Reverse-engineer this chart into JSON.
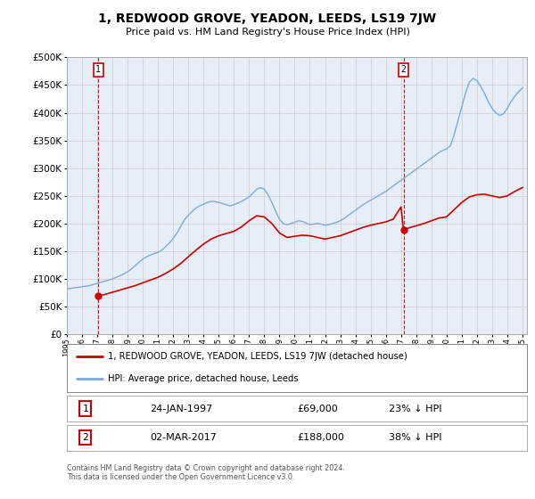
{
  "title": "1, REDWOOD GROVE, YEADON, LEEDS, LS19 7JW",
  "subtitle": "Price paid vs. HM Land Registry's House Price Index (HPI)",
  "ylim": [
    0,
    500000
  ],
  "xlim_start": 1995.0,
  "xlim_end": 2025.3,
  "purchase1_x": 1997.07,
  "purchase1_y": 69000,
  "purchase1_label": "24-JAN-1997",
  "purchase1_price": "£69,000",
  "purchase1_hpi": "23% ↓ HPI",
  "purchase2_x": 2017.17,
  "purchase2_y": 188000,
  "purchase2_label": "02-MAR-2017",
  "purchase2_price": "£188,000",
  "purchase2_hpi": "38% ↓ HPI",
  "red_line_color": "#cc0000",
  "blue_line_color": "#7aabdb",
  "vline_color": "#cc0000",
  "grid_color": "#cccccc",
  "bg_color": "#e8eef7",
  "legend_label_red": "1, REDWOOD GROVE, YEADON, LEEDS, LS19 7JW (detached house)",
  "legend_label_blue": "HPI: Average price, detached house, Leeds",
  "footer": "Contains HM Land Registry data © Crown copyright and database right 2024.\nThis data is licensed under the Open Government Licence v3.0.",
  "hpi_years": [
    1995.0,
    1995.25,
    1995.5,
    1995.75,
    1996.0,
    1996.25,
    1996.5,
    1996.75,
    1997.0,
    1997.25,
    1997.5,
    1997.75,
    1998.0,
    1998.25,
    1998.5,
    1998.75,
    1999.0,
    1999.25,
    1999.5,
    1999.75,
    2000.0,
    2000.25,
    2000.5,
    2000.75,
    2001.0,
    2001.25,
    2001.5,
    2001.75,
    2002.0,
    2002.25,
    2002.5,
    2002.75,
    2003.0,
    2003.25,
    2003.5,
    2003.75,
    2004.0,
    2004.25,
    2004.5,
    2004.75,
    2005.0,
    2005.25,
    2005.5,
    2005.75,
    2006.0,
    2006.25,
    2006.5,
    2006.75,
    2007.0,
    2007.25,
    2007.5,
    2007.75,
    2008.0,
    2008.25,
    2008.5,
    2008.75,
    2009.0,
    2009.25,
    2009.5,
    2009.75,
    2010.0,
    2010.25,
    2010.5,
    2010.75,
    2011.0,
    2011.25,
    2011.5,
    2011.75,
    2012.0,
    2012.25,
    2012.5,
    2012.75,
    2013.0,
    2013.25,
    2013.5,
    2013.75,
    2014.0,
    2014.25,
    2014.5,
    2014.75,
    2015.0,
    2015.25,
    2015.5,
    2015.75,
    2016.0,
    2016.25,
    2016.5,
    2016.75,
    2017.0,
    2017.25,
    2017.5,
    2017.75,
    2018.0,
    2018.25,
    2018.5,
    2018.75,
    2019.0,
    2019.25,
    2019.5,
    2019.75,
    2020.0,
    2020.25,
    2020.5,
    2020.75,
    2021.0,
    2021.25,
    2021.5,
    2021.75,
    2022.0,
    2022.25,
    2022.5,
    2022.75,
    2023.0,
    2023.25,
    2023.5,
    2023.75,
    2024.0,
    2024.25,
    2024.5,
    2024.75,
    2025.0
  ],
  "hpi_values": [
    82000,
    83000,
    84000,
    85000,
    86000,
    87000,
    88000,
    90000,
    92000,
    94000,
    96000,
    98000,
    100000,
    103000,
    106000,
    109000,
    113000,
    118000,
    124000,
    130000,
    136000,
    140000,
    143000,
    146000,
    148000,
    152000,
    158000,
    165000,
    173000,
    183000,
    195000,
    207000,
    215000,
    222000,
    228000,
    232000,
    235000,
    238000,
    240000,
    240000,
    238000,
    236000,
    234000,
    232000,
    234000,
    237000,
    240000,
    244000,
    248000,
    255000,
    262000,
    265000,
    262000,
    252000,
    238000,
    222000,
    208000,
    200000,
    198000,
    200000,
    202000,
    205000,
    204000,
    201000,
    198000,
    199000,
    200000,
    199000,
    197000,
    198000,
    200000,
    202000,
    205000,
    209000,
    214000,
    219000,
    224000,
    229000,
    234000,
    238000,
    242000,
    246000,
    250000,
    254000,
    258000,
    263000,
    268000,
    273000,
    278000,
    283000,
    288000,
    293000,
    298000,
    303000,
    308000,
    313000,
    318000,
    323000,
    328000,
    332000,
    335000,
    340000,
    360000,
    385000,
    410000,
    435000,
    455000,
    462000,
    458000,
    448000,
    435000,
    420000,
    408000,
    400000,
    395000,
    398000,
    408000,
    420000,
    430000,
    438000,
    445000
  ],
  "red_years": [
    1997.07,
    1997.5,
    1998.0,
    1998.5,
    1999.0,
    1999.5,
    2000.0,
    2000.5,
    2001.0,
    2001.5,
    2002.0,
    2002.5,
    2003.0,
    2003.5,
    2004.0,
    2004.5,
    2005.0,
    2005.5,
    2006.0,
    2006.5,
    2007.0,
    2007.5,
    2008.0,
    2008.5,
    2009.0,
    2009.5,
    2010.0,
    2010.5,
    2011.0,
    2011.5,
    2012.0,
    2012.5,
    2013.0,
    2013.5,
    2014.0,
    2014.5,
    2015.0,
    2015.5,
    2016.0,
    2016.5,
    2017.0,
    2017.17,
    2017.5,
    2018.0,
    2018.5,
    2019.0,
    2019.5,
    2020.0,
    2020.5,
    2021.0,
    2021.5,
    2022.0,
    2022.5,
    2023.0,
    2023.5,
    2024.0,
    2024.5,
    2025.0
  ],
  "red_values": [
    69000,
    72000,
    76000,
    80000,
    84000,
    88000,
    93000,
    98000,
    103000,
    110000,
    118000,
    128000,
    140000,
    152000,
    163000,
    172000,
    178000,
    182000,
    186000,
    194000,
    205000,
    214000,
    212000,
    200000,
    183000,
    175000,
    177000,
    179000,
    178000,
    175000,
    172000,
    175000,
    178000,
    183000,
    188000,
    193000,
    197000,
    200000,
    203000,
    208000,
    230000,
    188000,
    192000,
    196000,
    200000,
    205000,
    210000,
    212000,
    225000,
    238000,
    248000,
    252000,
    253000,
    250000,
    247000,
    250000,
    258000,
    265000
  ]
}
